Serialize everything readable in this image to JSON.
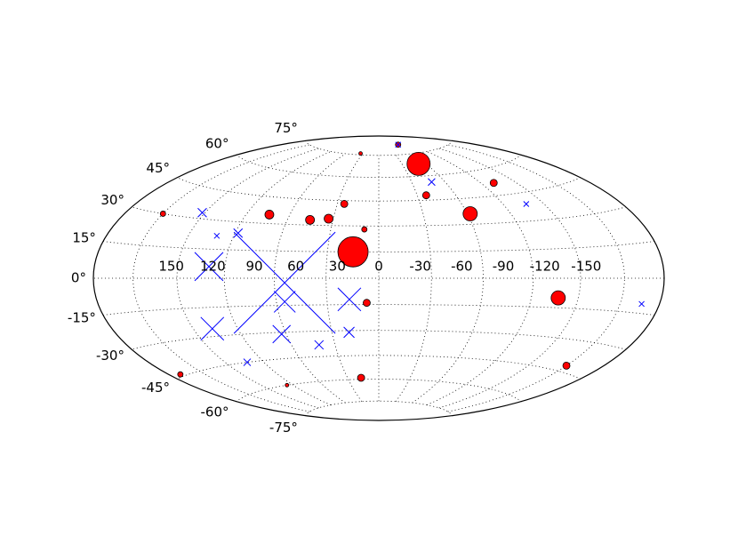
{
  "chart_data": {
    "type": "scatter",
    "projection": "hammer",
    "xlim": [
      180,
      -180
    ],
    "ylim": [
      -90,
      90
    ],
    "xticks": [
      150,
      120,
      90,
      60,
      30,
      0,
      -30,
      -60,
      -90,
      -120,
      -150
    ],
    "yticks": [
      {
        "value": -75,
        "label": "-75°"
      },
      {
        "value": -60,
        "label": "-60°"
      },
      {
        "value": -45,
        "label": "-45°"
      },
      {
        "value": -30,
        "label": "-30°"
      },
      {
        "value": -15,
        "label": "-15°"
      },
      {
        "value": 0,
        "label": "0°"
      },
      {
        "value": 15,
        "label": "15°"
      },
      {
        "value": 30,
        "label": "30°"
      },
      {
        "value": 45,
        "label": "45°"
      },
      {
        "value": 60,
        "label": "60°"
      },
      {
        "value": 75,
        "label": "75°"
      }
    ],
    "grid": true,
    "series": [
      {
        "color": "#ff0000",
        "marker": "circle",
        "x": [
          15,
          -51,
          -107,
          -62,
          45,
          33,
          74,
          -37,
          25,
          -101,
          9,
          -62,
          34,
          150,
          7,
          17,
          -150,
          170,
          96
        ],
        "y": [
          15,
          68,
          -10,
          36,
          33,
          34,
          35,
          48,
          43,
          52,
          28,
          82,
          76,
          30,
          -14,
          -59,
          -42,
          -44,
          -60
        ],
        "sizes": [
          17,
          13,
          8,
          8,
          5,
          5,
          5,
          4,
          4,
          4,
          3,
          3,
          2,
          3,
          4,
          4,
          4,
          3,
          2
        ]
      },
      {
        "color": "#0000ff",
        "marker": "x",
        "x": [
          54,
          100,
          107,
          55,
          17,
          63,
          88,
          122,
          101,
          103,
          41,
          19,
          -48,
          -107,
          -166,
          -62
        ],
        "y": [
          -2.5,
          6,
          -26,
          -13,
          -12,
          -31,
          24,
          33,
          22,
          -45,
          -38,
          -31,
          56,
          39,
          -11,
          82
        ],
        "sizes": [
          57,
          16,
          13,
          12,
          13,
          10,
          5,
          5,
          3,
          4,
          5,
          6,
          4,
          3,
          3,
          3
        ]
      }
    ]
  }
}
